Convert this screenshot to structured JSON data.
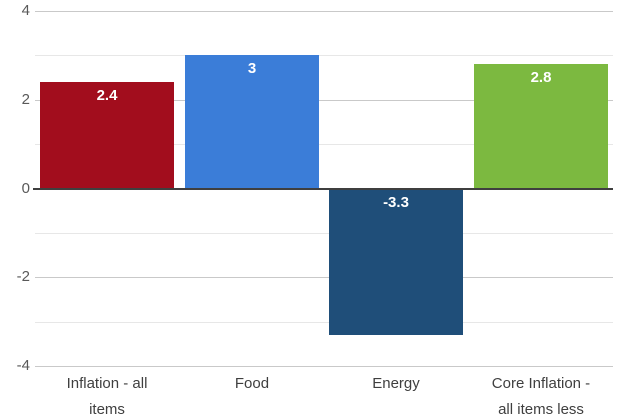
{
  "chart_data": {
    "type": "bar",
    "title": "",
    "xlabel": "",
    "ylabel": "",
    "categories": [
      "Inflation - all items",
      "Food",
      "Energy",
      "Core Inflation - all items less"
    ],
    "category_display_lines": [
      "Inflation - all\nitems",
      "Food",
      "Energy",
      "Core Inflation -\nall items less"
    ],
    "values": [
      2.4,
      3,
      -3.3,
      2.8
    ],
    "value_labels": [
      "2.4",
      "3",
      "-3.3",
      "2.8"
    ],
    "bar_colors": [
      "#a20d1d",
      "#3b7dd8",
      "#1f4e79",
      "#7cb940"
    ],
    "ylim": [
      -4,
      4
    ],
    "ytick_values": [
      4,
      2,
      0,
      -2,
      -4
    ],
    "ytick_labels": [
      "4",
      "2",
      "0",
      "-2",
      "-4"
    ],
    "gridline_values": [
      4,
      3,
      2,
      1,
      -1,
      -2,
      -3,
      -4
    ],
    "grid": "on",
    "legend": "none",
    "value_label_color": "#ffffff",
    "axis_line_color": "#3f3f3f",
    "tick_label_color": "#595959",
    "category_label_color": "#3f3f3f",
    "major_grid_color": "#c9c9c9",
    "minor_grid_color": "#e7e7e7"
  }
}
